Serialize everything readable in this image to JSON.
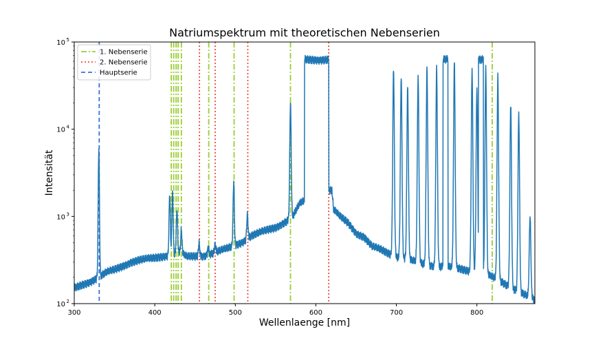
{
  "chart_data": {
    "type": "line",
    "title": "Natriumspektrum mit theoretischen Nebenserien",
    "xlabel": "Wellenlaenge [nm]",
    "ylabel": "Intensität",
    "xlim": [
      300,
      872
    ],
    "ylim": [
      100,
      100000
    ],
    "yscale": "log",
    "grid": false,
    "legend_position": "top-left",
    "x_ticks": [
      "300",
      "400",
      "500",
      "600",
      "700",
      "800"
    ],
    "y_ticks": [
      {
        "base": "10",
        "exp": "2"
      },
      {
        "base": "10",
        "exp": "3"
      },
      {
        "base": "10",
        "exp": "4"
      },
      {
        "base": "10",
        "exp": "5"
      }
    ],
    "spectrum": {
      "color": "#1f77b4",
      "baseline": [
        [
          300,
          150
        ],
        [
          310,
          165
        ],
        [
          320,
          180
        ],
        [
          330,
          200
        ],
        [
          340,
          228
        ],
        [
          350,
          245
        ],
        [
          360,
          270
        ],
        [
          370,
          300
        ],
        [
          380,
          315
        ],
        [
          390,
          325
        ],
        [
          400,
          335
        ],
        [
          410,
          350
        ],
        [
          420,
          365
        ],
        [
          430,
          390
        ],
        [
          440,
          345
        ],
        [
          450,
          350
        ],
        [
          460,
          355
        ],
        [
          470,
          375
        ],
        [
          480,
          400
        ],
        [
          490,
          430
        ],
        [
          500,
          470
        ],
        [
          510,
          520
        ],
        [
          520,
          600
        ],
        [
          530,
          650
        ],
        [
          540,
          700
        ],
        [
          550,
          750
        ],
        [
          560,
          850
        ],
        [
          570,
          950
        ],
        [
          580,
          1400
        ],
        [
          590,
          1600
        ],
        [
          600,
          1700
        ],
        [
          610,
          1900
        ],
        [
          620,
          2000
        ],
        [
          622,
          1200
        ],
        [
          630,
          1000
        ],
        [
          640,
          850
        ],
        [
          650,
          650
        ],
        [
          660,
          580
        ],
        [
          670,
          450
        ],
        [
          680,
          420
        ],
        [
          690,
          380
        ],
        [
          700,
          350
        ],
        [
          710,
          330
        ],
        [
          720,
          310
        ],
        [
          730,
          290
        ],
        [
          740,
          280
        ],
        [
          750,
          270
        ],
        [
          760,
          265
        ],
        [
          770,
          260
        ],
        [
          780,
          250
        ],
        [
          790,
          240
        ],
        [
          800,
          230
        ],
        [
          810,
          220
        ],
        [
          820,
          200
        ],
        [
          830,
          180
        ],
        [
          840,
          160
        ],
        [
          850,
          140
        ],
        [
          860,
          125
        ],
        [
          872,
          110
        ]
      ],
      "peaks": [
        {
          "x": 330.5,
          "y": 6000,
          "w": 0.8
        },
        {
          "x": 418.5,
          "y": 1800,
          "w": 0.8
        },
        {
          "x": 422.0,
          "y": 1900,
          "w": 0.8
        },
        {
          "x": 427.5,
          "y": 1200,
          "w": 0.8
        },
        {
          "x": 433.0,
          "y": 700,
          "w": 0.8
        },
        {
          "x": 455.0,
          "y": 500,
          "w": 0.8
        },
        {
          "x": 466.5,
          "y": 450,
          "w": 0.8
        },
        {
          "x": 475.0,
          "y": 480,
          "w": 0.8
        },
        {
          "x": 498.0,
          "y": 2500,
          "w": 0.8
        },
        {
          "x": 515.0,
          "y": 1050,
          "w": 0.8
        },
        {
          "x": 568.5,
          "y": 20000,
          "w": 0.9
        },
        {
          "x": 696.5,
          "y": 50000,
          "w": 1.0
        },
        {
          "x": 706.0,
          "y": 40000,
          "w": 1.0
        },
        {
          "x": 714.0,
          "y": 30000,
          "w": 1.0
        },
        {
          "x": 727.0,
          "y": 40000,
          "w": 1.0
        },
        {
          "x": 738.0,
          "y": 50000,
          "w": 1.0
        },
        {
          "x": 750.0,
          "y": 50000,
          "w": 1.0
        },
        {
          "x": 772.0,
          "y": 60000,
          "w": 1.0
        },
        {
          "x": 794.0,
          "y": 50000,
          "w": 1.0
        },
        {
          "x": 800.0,
          "y": 30000,
          "w": 1.0
        },
        {
          "x": 811.0,
          "y": 50000,
          "w": 1.0
        },
        {
          "x": 826.0,
          "y": 40000,
          "w": 1.0
        },
        {
          "x": 842.0,
          "y": 20000,
          "w": 1.0
        },
        {
          "x": 852.0,
          "y": 15000,
          "w": 1.0
        },
        {
          "x": 866.0,
          "y": 1000,
          "w": 1.0
        }
      ],
      "plateaus": [
        {
          "x1": 586,
          "x2": 616,
          "y": 63000
        },
        {
          "x1": 758,
          "x2": 764,
          "y": 63000
        },
        {
          "x1": 802,
          "x2": 808,
          "y": 63000
        }
      ]
    },
    "series": [
      {
        "name": "1. Nebenserie",
        "color": "#9acd32",
        "style": "dashdot",
        "x": [
          420.5,
          423.5,
          426.5,
          429.0,
          433.0,
          467.0,
          498.5,
          568.5,
          819.0
        ]
      },
      {
        "name": "2. Nebenserie",
        "color": "#f04c3b",
        "style": "dotted",
        "x": [
          455.5,
          475.0,
          515.5,
          616.0
        ]
      },
      {
        "name": "Hauptserie",
        "color": "#3a6fd8",
        "style": "dashed",
        "x": [
          331.0
        ]
      }
    ]
  }
}
